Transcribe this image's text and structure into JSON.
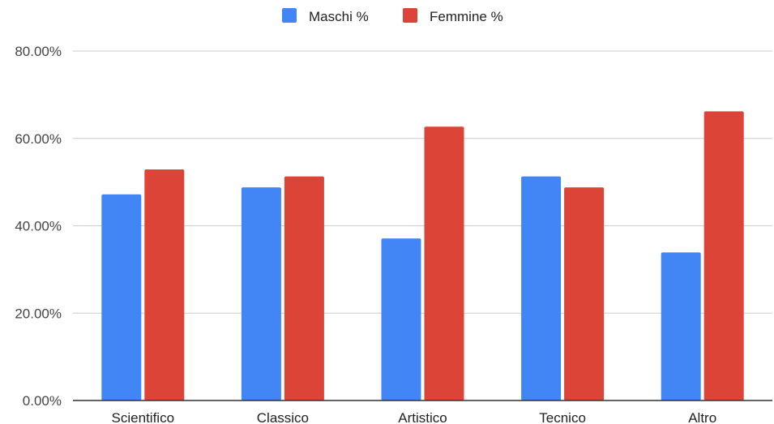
{
  "chart_data": {
    "type": "bar",
    "title": "",
    "xlabel": "",
    "ylabel": "",
    "categories": [
      "Scientifico",
      "Classico",
      "Artistico",
      "Tecnico",
      "Altro"
    ],
    "series": [
      {
        "name": "Maschi %",
        "color": "#4285F4",
        "values": [
          47.2,
          48.8,
          37.1,
          51.3,
          33.9
        ]
      },
      {
        "name": "Femmine %",
        "color": "#DB4437",
        "values": [
          52.9,
          51.3,
          62.7,
          48.8,
          66.2
        ]
      }
    ],
    "ylim": [
      0,
      80
    ],
    "yticks": [
      0,
      20,
      40,
      60,
      80
    ],
    "ytick_labels": [
      "0.00%",
      "20.00%",
      "40.00%",
      "60.00%",
      "80.00%"
    ],
    "legend": "top-center",
    "grid": true
  }
}
